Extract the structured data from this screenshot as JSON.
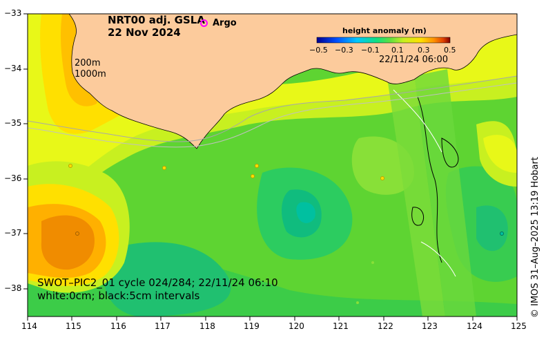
{
  "title": {
    "line1": "NRT00 adj. GSLA",
    "line2": "22 Nov 2024"
  },
  "legend": {
    "argo_label": "Argo",
    "argo_color": "#ff00ff"
  },
  "isobaths": {
    "label1": "200m",
    "label2": "1000m"
  },
  "colorbar": {
    "title": "height anomaly (m)",
    "ticks": [
      "−0.5",
      "−0.3",
      "−0.1",
      "0.1",
      "0.3",
      "0.5"
    ],
    "range": [
      -0.5,
      0.5
    ],
    "colors": [
      "#00008f",
      "#0050ff",
      "#00c8ff",
      "#10e080",
      "#60e040",
      "#c8f020",
      "#ffe000",
      "#ff9000",
      "#e04000",
      "#800000"
    ]
  },
  "swot_overlay_time": "22/11/24 06:00",
  "bottom_text": {
    "line1": "SWOT–PIC2_01 cycle 024/284; 22/11/24 06:10",
    "line2": "white:0cm; black:5cm intervals"
  },
  "axes": {
    "x_ticks": [
      "114",
      "115",
      "116",
      "117",
      "118",
      "119",
      "120",
      "121",
      "122",
      "123",
      "124",
      "125"
    ],
    "y_ticks": [
      "−33",
      "−34",
      "−35",
      "−36",
      "−37",
      "−38"
    ],
    "lon_range": [
      114,
      125
    ],
    "lat_range": [
      -38.5,
      -33
    ]
  },
  "credit": "© IMOS 31–Aug–2025 13:19 Hobart",
  "colors": {
    "land": "#fccb9c",
    "ocean_base": "#5ed432"
  }
}
